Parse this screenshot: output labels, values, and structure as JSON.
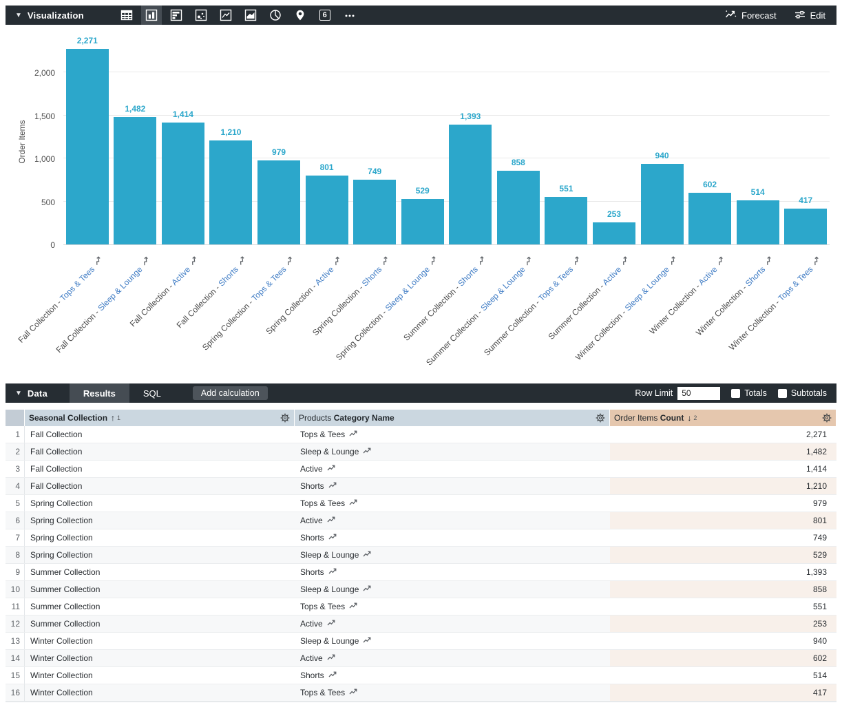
{
  "viz_bar": {
    "title": "Visualization",
    "forecast_label": "Forecast",
    "edit_label": "Edit",
    "single_value_icon_text": "6",
    "icons": [
      "table-chart-icon",
      "column-chart-icon",
      "bar-chart-icon",
      "scatter-chart-icon",
      "line-chart-icon",
      "area-chart-icon",
      "pie-chart-icon",
      "map-chart-icon",
      "single-value-icon",
      "more-charts-icon"
    ],
    "selected_icon": "column-chart-icon"
  },
  "chart_data": {
    "type": "bar",
    "title": "",
    "xlabel": "",
    "ylabel": "Order Items",
    "ylim": [
      0,
      2400
    ],
    "grid": true,
    "legend": "none",
    "bar_color": "#2ca7cb",
    "yticks": [
      {
        "value": 0,
        "label": "0"
      },
      {
        "value": 500,
        "label": "500"
      },
      {
        "value": 1000,
        "label": "1,000"
      },
      {
        "value": 1500,
        "label": "1,500"
      },
      {
        "value": 2000,
        "label": "2,000"
      }
    ],
    "categories": [
      {
        "prefix": "Fall Collection - ",
        "highlight": "Tops & Tees"
      },
      {
        "prefix": "Fall Collection - ",
        "highlight": "Sleep & Lounge"
      },
      {
        "prefix": "Fall Collection - ",
        "highlight": "Active"
      },
      {
        "prefix": "Fall Collection - ",
        "highlight": "Shorts"
      },
      {
        "prefix": "Spring Collection - ",
        "highlight": "Tops & Tees"
      },
      {
        "prefix": "Spring Collection - ",
        "highlight": "Active"
      },
      {
        "prefix": "Spring Collection - ",
        "highlight": "Shorts"
      },
      {
        "prefix": "Spring Collection - ",
        "highlight": "Sleep & Lounge"
      },
      {
        "prefix": "Summer Collection - ",
        "highlight": "Shorts"
      },
      {
        "prefix": "Summer Collection - ",
        "highlight": "Sleep & Lounge"
      },
      {
        "prefix": "Summer Collection - ",
        "highlight": "Tops & Tees"
      },
      {
        "prefix": "Summer Collection - ",
        "highlight": "Active"
      },
      {
        "prefix": "Winter Collection - ",
        "highlight": "Sleep & Lounge"
      },
      {
        "prefix": "Winter Collection - ",
        "highlight": "Active"
      },
      {
        "prefix": "Winter Collection - ",
        "highlight": "Shorts"
      },
      {
        "prefix": "Winter Collection - ",
        "highlight": "Tops & Tees"
      }
    ],
    "values": [
      2271,
      1482,
      1414,
      1210,
      979,
      801,
      749,
      529,
      1393,
      858,
      551,
      253,
      940,
      602,
      514,
      417
    ],
    "value_labels": [
      "2,271",
      "1,482",
      "1,414",
      "1,210",
      "979",
      "801",
      "749",
      "529",
      "1,393",
      "858",
      "551",
      "253",
      "940",
      "602",
      "514",
      "417"
    ]
  },
  "data_bar": {
    "title": "Data",
    "tabs": [
      {
        "label": "Results",
        "active": true
      },
      {
        "label": "SQL",
        "active": false
      }
    ],
    "add_calculation_label": "Add calculation",
    "row_limit_label": "Row Limit",
    "row_limit_value": "50",
    "totals_label": "Totals",
    "totals_checked": false,
    "subtotals_label": "Subtotals",
    "subtotals_checked": false
  },
  "table": {
    "columns": [
      {
        "view": "",
        "field": "Seasonal Collection",
        "sort": "↑",
        "sort_order": "1",
        "kind": "dimension"
      },
      {
        "view": "Products",
        "field": "Category Name",
        "sort": "",
        "sort_order": "",
        "kind": "dimension"
      },
      {
        "view": "Order Items",
        "field": "Count",
        "sort": "↓",
        "sort_order": "2",
        "kind": "measure"
      }
    ],
    "rows": [
      {
        "num": "1",
        "collection": "Fall Collection",
        "category": "Tops & Tees",
        "count": "2,271"
      },
      {
        "num": "2",
        "collection": "Fall Collection",
        "category": "Sleep & Lounge",
        "count": "1,482"
      },
      {
        "num": "3",
        "collection": "Fall Collection",
        "category": "Active",
        "count": "1,414"
      },
      {
        "num": "4",
        "collection": "Fall Collection",
        "category": "Shorts",
        "count": "1,210"
      },
      {
        "num": "5",
        "collection": "Spring Collection",
        "category": "Tops & Tees",
        "count": "979"
      },
      {
        "num": "6",
        "collection": "Spring Collection",
        "category": "Active",
        "count": "801"
      },
      {
        "num": "7",
        "collection": "Spring Collection",
        "category": "Shorts",
        "count": "749"
      },
      {
        "num": "8",
        "collection": "Spring Collection",
        "category": "Sleep & Lounge",
        "count": "529"
      },
      {
        "num": "9",
        "collection": "Summer Collection",
        "category": "Shorts",
        "count": "1,393"
      },
      {
        "num": "10",
        "collection": "Summer Collection",
        "category": "Sleep & Lounge",
        "count": "858"
      },
      {
        "num": "11",
        "collection": "Summer Collection",
        "category": "Tops & Tees",
        "count": "551"
      },
      {
        "num": "12",
        "collection": "Summer Collection",
        "category": "Active",
        "count": "253"
      },
      {
        "num": "13",
        "collection": "Winter Collection",
        "category": "Sleep & Lounge",
        "count": "940"
      },
      {
        "num": "14",
        "collection": "Winter Collection",
        "category": "Active",
        "count": "602"
      },
      {
        "num": "15",
        "collection": "Winter Collection",
        "category": "Shorts",
        "count": "514"
      },
      {
        "num": "16",
        "collection": "Winter Collection",
        "category": "Tops & Tees",
        "count": "417"
      }
    ]
  },
  "colors": {
    "toolbar_bg": "#262d33",
    "selected_bg": "#454c53",
    "bar_color": "#2ca7cb",
    "link_blue": "#3e7bc4",
    "dimension_header_bg": "#cbd7e0",
    "measure_header_bg": "#e5c7ae",
    "measure_alt_row_bg": "#f8f0ea"
  }
}
